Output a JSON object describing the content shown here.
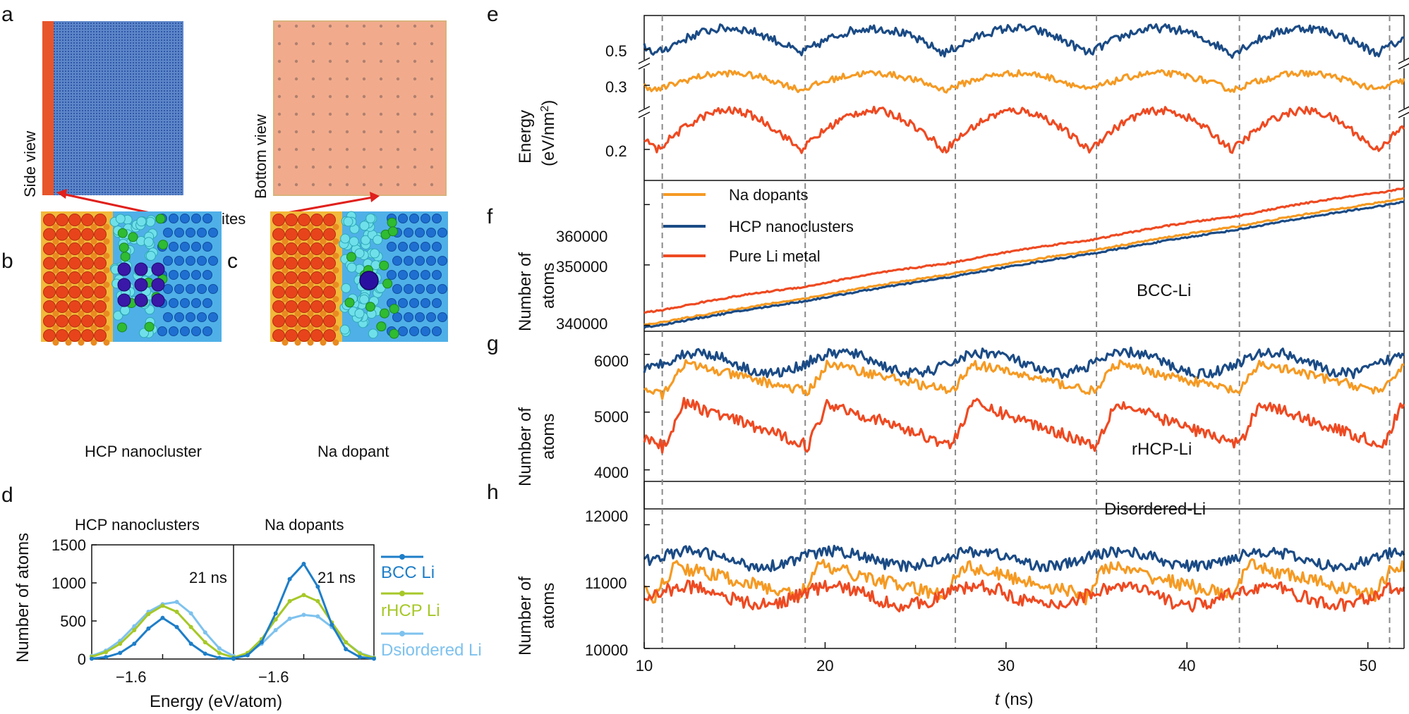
{
  "colors": {
    "na": "#f59a23",
    "hcp": "#1b4b85",
    "pure": "#ee4a22",
    "bcc_d": "#1e7ec8",
    "rhcp_d": "#a6c828",
    "dis_d": "#7ec2ee",
    "frame_orange": "#f3b93c",
    "frame_blue": "#4faee6",
    "panel_a_blue": "#3a66b4",
    "panel_a_orange": "#f1a98a",
    "arrow": "#e0201c"
  },
  "panel_labels": {
    "a": "a",
    "b": "b",
    "c": "c",
    "d": "d",
    "e": "e",
    "f": "f",
    "g": "g",
    "h": "h"
  },
  "panel_a": {
    "side_view": "Side view",
    "bottom_view": "Bottom view",
    "dopant_sites": "Dopant sites"
  },
  "panel_b": {
    "caption": "HCP nanocluster"
  },
  "panel_c": {
    "caption": "Na dopant"
  },
  "chart_data": [
    {
      "id": "d",
      "type": "line",
      "subtitles": [
        "HCP nanoclusters",
        "Na dopants"
      ],
      "annotations": [
        "21 ns",
        "21 ns"
      ],
      "xlabel": "Energy (eV/atom)",
      "ylabel": "Number of atoms",
      "xticks": [
        "−1.6",
        "−1.6"
      ],
      "xtick_values": [
        -1.6
      ],
      "xlim": [
        -1.8,
        -1.4
      ],
      "ylim": [
        0,
        1500
      ],
      "yticks": [
        0,
        500,
        1000,
        1500
      ],
      "legend": [
        "BCC Li",
        "rHCP Li",
        "Dsiordered Li"
      ],
      "x": [
        -1.8,
        -1.76,
        -1.72,
        -1.68,
        -1.64,
        -1.6,
        -1.56,
        -1.52,
        -1.48,
        -1.44,
        -1.4
      ],
      "panels": [
        {
          "series": [
            {
              "name": "BCC Li",
              "values": [
                5,
                25,
                80,
                200,
                400,
                540,
                420,
                200,
                70,
                15,
                3
              ]
            },
            {
              "name": "rHCP Li",
              "values": [
                30,
                90,
                200,
                380,
                590,
                700,
                620,
                420,
                220,
                80,
                20
              ]
            },
            {
              "name": "Dsiordered Li",
              "values": [
                40,
                110,
                240,
                430,
                620,
                720,
                750,
                600,
                350,
                140,
                40
              ]
            }
          ]
        },
        {
          "series": [
            {
              "name": "BCC Li",
              "values": [
                10,
                50,
                220,
                600,
                1050,
                1250,
                950,
                450,
                130,
                25,
                5
              ]
            },
            {
              "name": "rHCP Li",
              "values": [
                20,
                80,
                260,
                520,
                760,
                840,
                760,
                480,
                220,
                70,
                15
              ]
            },
            {
              "name": "Dsiordered Li",
              "values": [
                20,
                70,
                200,
                380,
                530,
                580,
                560,
                420,
                220,
                80,
                20
              ]
            }
          ]
        }
      ]
    },
    {
      "id": "e",
      "type": "line",
      "ylabel": "Energy (eV/nm²)",
      "ylabel_line1": "Energy",
      "ylabel_line2": "(eV/nm",
      "ylabel_sup": "2",
      "ylabel_close": ")",
      "yticks": [
        "0.5",
        "0.3",
        "0.2"
      ],
      "broken_axis": true,
      "series": [
        {
          "name": "HCP nanoclusters",
          "mean": 0.5,
          "amplitude": 0.012,
          "noise": 0.004
        },
        {
          "name": "Na dopants",
          "mean": 0.3,
          "amplitude": 0.008,
          "noise": 0.003
        },
        {
          "name": "Pure Li metal",
          "mean": 0.205,
          "amplitude": 0.02,
          "noise": 0.004
        }
      ]
    },
    {
      "id": "f",
      "type": "line",
      "ylabel": "Number of atoms",
      "ylim": [
        339000,
        364000
      ],
      "yticks": [
        340000,
        350000,
        360000
      ],
      "ytick_labels": [
        "340000",
        "350000",
        "360000"
      ],
      "annotation": "BCC-Li",
      "legend": [
        "Na dopants",
        "HCP nanoclusters",
        "Pure Li metal"
      ],
      "series": [
        {
          "name": "Na dopants",
          "start": 340000,
          "end": 361000
        },
        {
          "name": "HCP nanoclusters",
          "start": 339600,
          "end": 360400
        },
        {
          "name": "Pure Li metal",
          "start": 342000,
          "end": 362600
        }
      ]
    },
    {
      "id": "g",
      "type": "line",
      "ylabel": "Number of atoms",
      "ylim": [
        3800,
        6400
      ],
      "yticks": [
        4000,
        5000,
        6000
      ],
      "ytick_labels": [
        "4000",
        "5000",
        "6000"
      ],
      "annotation": "rHCP-Li",
      "series": [
        {
          "name": "HCP nanoclusters",
          "mean": 5850,
          "amplitude": 180,
          "noise": 90
        },
        {
          "name": "Na dopants",
          "mean": 5600,
          "amplitude": 300,
          "noise": 80
        },
        {
          "name": "Pure Li metal",
          "mean": 4800,
          "amplitude": 450,
          "noise": 100
        }
      ]
    },
    {
      "id": "h",
      "type": "line",
      "ylabel": "Number of atoms",
      "ylim": [
        10000,
        12700
      ],
      "yticks": [
        10000,
        11000,
        12000
      ],
      "ytick_labels": [
        "10000",
        "11000",
        "12000"
      ],
      "annotation": "Disordered-Li",
      "xlabel_var": "t",
      "xlabel_unit": " (ns)",
      "xlim": [
        10,
        52
      ],
      "xticks": [
        10,
        20,
        30,
        40,
        50
      ],
      "xtick_labels": [
        "10",
        "20",
        "30",
        "40",
        "50"
      ],
      "series": [
        {
          "name": "HCP nanoclusters",
          "mean": 11450,
          "amplitude": 120,
          "noise": 90
        },
        {
          "name": "Na dopants",
          "mean": 11100,
          "amplitude": 300,
          "noise": 110
        },
        {
          "name": "Pure Li metal",
          "mean": 10850,
          "amplitude": 150,
          "noise": 110
        }
      ]
    }
  ],
  "dashed_lines_t": [
    11,
    18.9,
    27.2,
    35,
    42.9,
    51.2
  ]
}
